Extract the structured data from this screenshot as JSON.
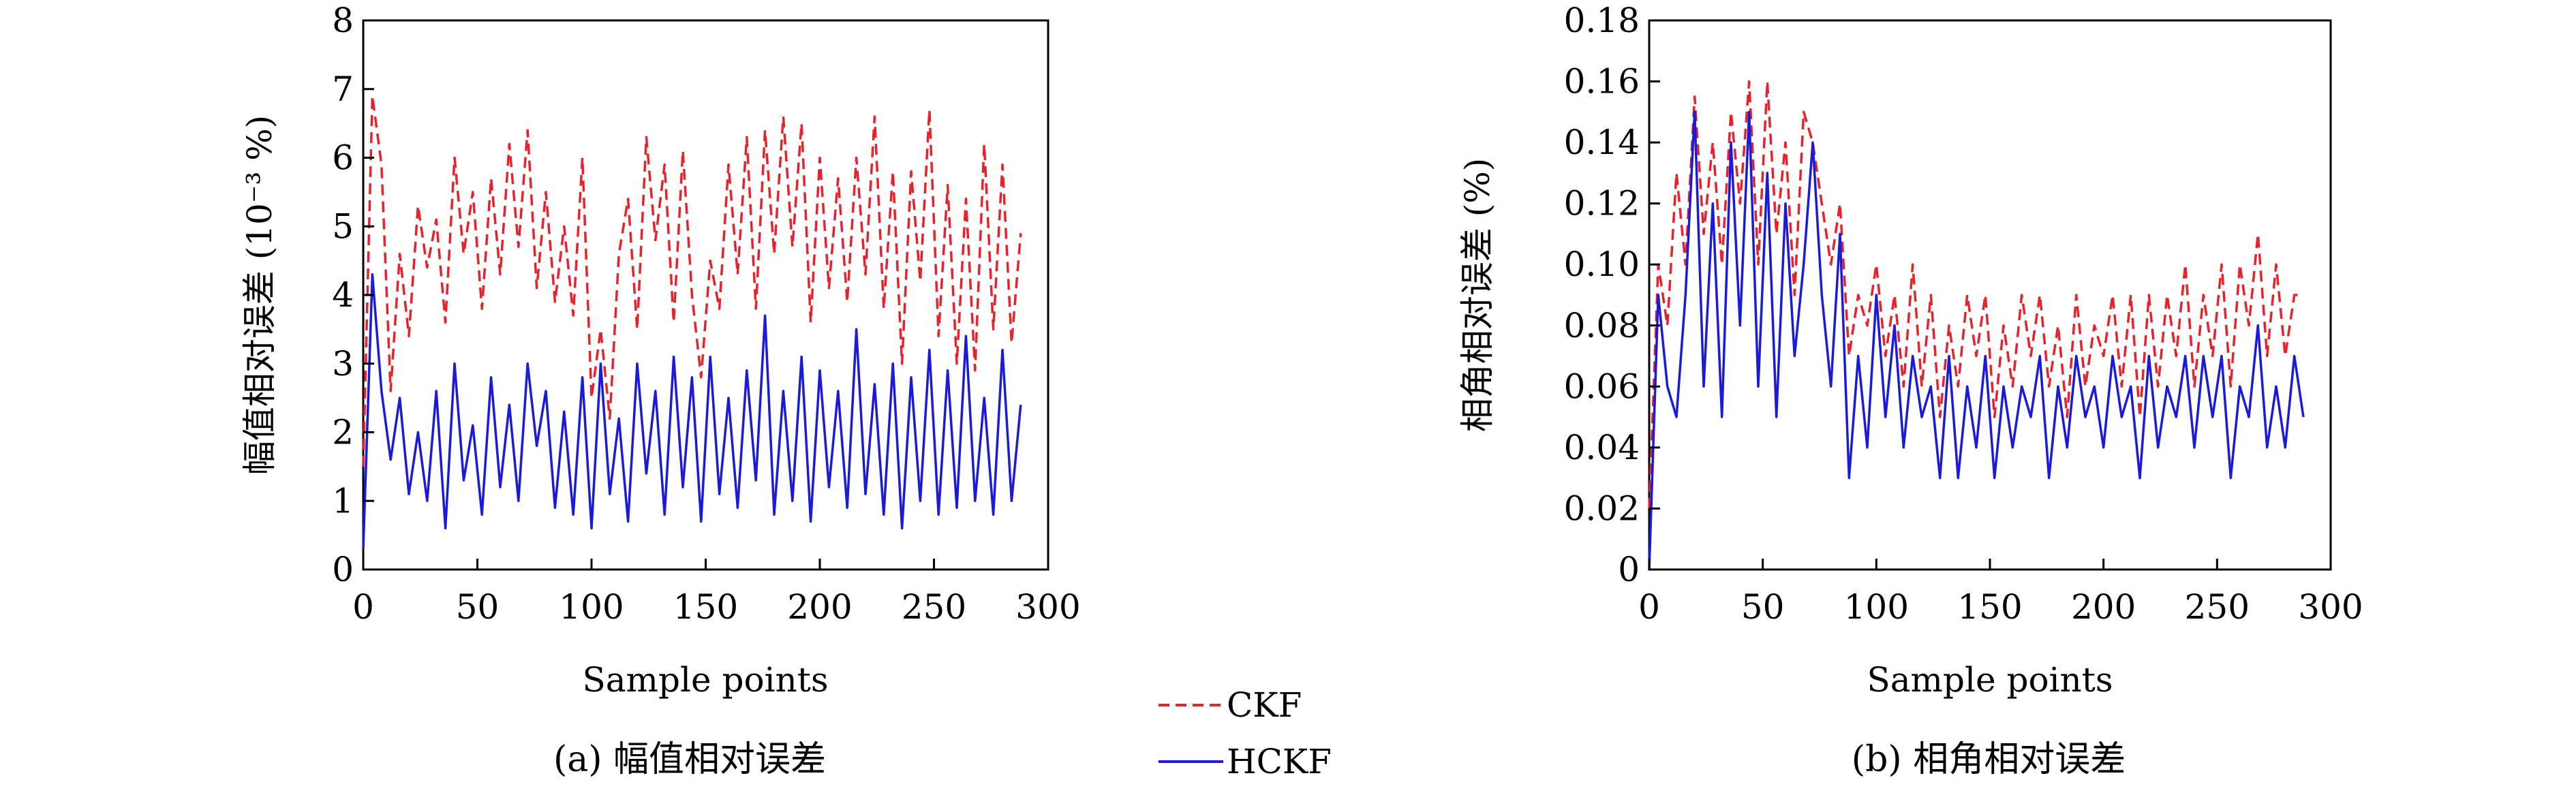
{
  "chart_data": [
    {
      "type": "line",
      "caption": "(a) 幅值相对误差",
      "xlabel": "Sample points",
      "ylabel": "幅值相对误差 (10⁻³ %)",
      "xlim": [
        0,
        300
      ],
      "ylim": [
        0,
        8
      ],
      "xticks": [
        0,
        50,
        100,
        150,
        200,
        250,
        300
      ],
      "yticks": [
        0,
        1,
        2,
        3,
        4,
        5,
        6,
        7,
        8
      ],
      "ytick_labels": [
        "0",
        "1",
        "2",
        "3",
        "4",
        "5",
        "6",
        "7",
        "8"
      ],
      "grid": false,
      "x": [
        0,
        4,
        8,
        12,
        16,
        20,
        24,
        28,
        32,
        36,
        40,
        44,
        48,
        52,
        56,
        60,
        64,
        68,
        72,
        76,
        80,
        84,
        88,
        92,
        96,
        100,
        104,
        108,
        112,
        116,
        120,
        124,
        128,
        132,
        136,
        140,
        144,
        148,
        152,
        156,
        160,
        164,
        168,
        172,
        176,
        180,
        184,
        188,
        192,
        196,
        200,
        204,
        208,
        212,
        216,
        220,
        224,
        228,
        232,
        236,
        240,
        244,
        248,
        252,
        256,
        260,
        264,
        268,
        272,
        276,
        280,
        284,
        288
      ],
      "series": [
        {
          "name": "CKF",
          "color": "#e8212b",
          "dash": "dashed",
          "values": [
            1.5,
            6.9,
            5.9,
            2.6,
            4.6,
            3.4,
            5.3,
            4.4,
            5.1,
            3.6,
            6.0,
            4.6,
            5.5,
            3.8,
            5.7,
            4.3,
            6.2,
            4.7,
            6.4,
            4.1,
            5.5,
            3.9,
            5.0,
            3.7,
            6.0,
            2.5,
            3.5,
            2.2,
            4.6,
            5.4,
            3.5,
            6.3,
            4.8,
            5.9,
            3.6,
            6.1,
            4.0,
            2.8,
            4.5,
            3.8,
            5.9,
            4.3,
            6.3,
            3.8,
            6.4,
            4.6,
            6.6,
            4.7,
            6.5,
            3.6,
            6.0,
            4.1,
            5.7,
            3.9,
            6.0,
            4.3,
            6.6,
            3.8,
            5.8,
            3.0,
            5.8,
            4.2,
            6.7,
            3.4,
            5.6,
            3.0,
            5.4,
            2.9,
            6.2,
            3.5,
            5.9,
            3.3,
            4.9
          ]
        },
        {
          "name": "HCKF",
          "color": "#1a1adc",
          "dash": "solid",
          "values": [
            0.3,
            4.3,
            2.6,
            1.6,
            2.5,
            1.1,
            2.0,
            1.0,
            2.6,
            0.6,
            3.0,
            1.3,
            2.1,
            0.8,
            2.8,
            1.2,
            2.4,
            1.0,
            3.0,
            1.8,
            2.6,
            0.9,
            2.3,
            0.8,
            2.8,
            0.6,
            3.0,
            1.1,
            2.2,
            0.7,
            3.0,
            1.4,
            2.6,
            0.8,
            3.1,
            1.2,
            2.8,
            0.7,
            3.1,
            1.1,
            2.5,
            0.9,
            2.9,
            1.3,
            3.7,
            0.8,
            2.6,
            1.0,
            3.1,
            0.7,
            2.9,
            1.2,
            2.6,
            0.9,
            3.5,
            1.1,
            2.7,
            0.8,
            3.0,
            0.6,
            2.8,
            1.0,
            3.2,
            0.8,
            2.9,
            0.9,
            3.4,
            1.0,
            2.5,
            0.8,
            3.2,
            1.0,
            2.4
          ]
        }
      ]
    },
    {
      "type": "line",
      "caption": "(b) 相角相对误差",
      "xlabel": "Sample points",
      "ylabel": "相角相对误差 (%)",
      "xlim": [
        0,
        300
      ],
      "ylim": [
        0,
        0.18
      ],
      "xticks": [
        0,
        50,
        100,
        150,
        200,
        250,
        300
      ],
      "yticks": [
        0,
        0.02,
        0.04,
        0.06,
        0.08,
        0.1,
        0.12,
        0.14,
        0.16,
        0.18
      ],
      "ytick_labels": [
        "0",
        "0.02",
        "0.04",
        "0.06",
        "0.08",
        "0.10",
        "0.12",
        "0.14",
        "0.16",
        "0.18"
      ],
      "grid": false,
      "x": [
        0,
        4,
        8,
        12,
        16,
        20,
        24,
        28,
        32,
        36,
        40,
        44,
        48,
        52,
        56,
        60,
        64,
        68,
        72,
        76,
        80,
        84,
        88,
        92,
        96,
        100,
        104,
        108,
        112,
        116,
        120,
        124,
        128,
        132,
        136,
        140,
        144,
        148,
        152,
        156,
        160,
        164,
        168,
        172,
        176,
        180,
        184,
        188,
        192,
        196,
        200,
        204,
        208,
        212,
        216,
        220,
        224,
        228,
        232,
        236,
        240,
        244,
        248,
        252,
        256,
        260,
        264,
        268,
        272,
        276,
        280,
        284,
        288
      ],
      "series": [
        {
          "name": "CKF",
          "color": "#e8212b",
          "dash": "dashed",
          "values": [
            0.02,
            0.1,
            0.08,
            0.13,
            0.1,
            0.155,
            0.11,
            0.14,
            0.1,
            0.15,
            0.12,
            0.16,
            0.1,
            0.16,
            0.11,
            0.14,
            0.09,
            0.15,
            0.14,
            0.12,
            0.1,
            0.12,
            0.07,
            0.09,
            0.08,
            0.1,
            0.07,
            0.09,
            0.06,
            0.1,
            0.06,
            0.09,
            0.05,
            0.08,
            0.06,
            0.09,
            0.07,
            0.09,
            0.05,
            0.08,
            0.06,
            0.09,
            0.07,
            0.09,
            0.06,
            0.08,
            0.05,
            0.09,
            0.06,
            0.08,
            0.07,
            0.09,
            0.06,
            0.09,
            0.05,
            0.09,
            0.06,
            0.09,
            0.07,
            0.1,
            0.06,
            0.09,
            0.07,
            0.1,
            0.06,
            0.1,
            0.08,
            0.11,
            0.07,
            0.1,
            0.07,
            0.09,
            0.09
          ]
        },
        {
          "name": "HCKF",
          "color": "#1a1adc",
          "dash": "solid",
          "values": [
            0.0,
            0.09,
            0.06,
            0.05,
            0.09,
            0.15,
            0.06,
            0.12,
            0.05,
            0.14,
            0.08,
            0.15,
            0.06,
            0.13,
            0.05,
            0.12,
            0.07,
            0.1,
            0.14,
            0.09,
            0.06,
            0.11,
            0.03,
            0.07,
            0.04,
            0.09,
            0.05,
            0.08,
            0.04,
            0.07,
            0.05,
            0.06,
            0.03,
            0.07,
            0.03,
            0.06,
            0.04,
            0.07,
            0.03,
            0.06,
            0.04,
            0.06,
            0.05,
            0.07,
            0.03,
            0.06,
            0.04,
            0.07,
            0.05,
            0.06,
            0.04,
            0.07,
            0.05,
            0.06,
            0.03,
            0.07,
            0.04,
            0.06,
            0.05,
            0.07,
            0.04,
            0.07,
            0.05,
            0.07,
            0.03,
            0.06,
            0.05,
            0.08,
            0.04,
            0.06,
            0.04,
            0.07,
            0.05
          ]
        }
      ]
    }
  ],
  "legend": {
    "items": [
      {
        "label": "CKF",
        "color": "#e8212b",
        "dash": "dashed"
      },
      {
        "label": "HCKF",
        "color": "#1a1adc",
        "dash": "solid"
      }
    ]
  }
}
